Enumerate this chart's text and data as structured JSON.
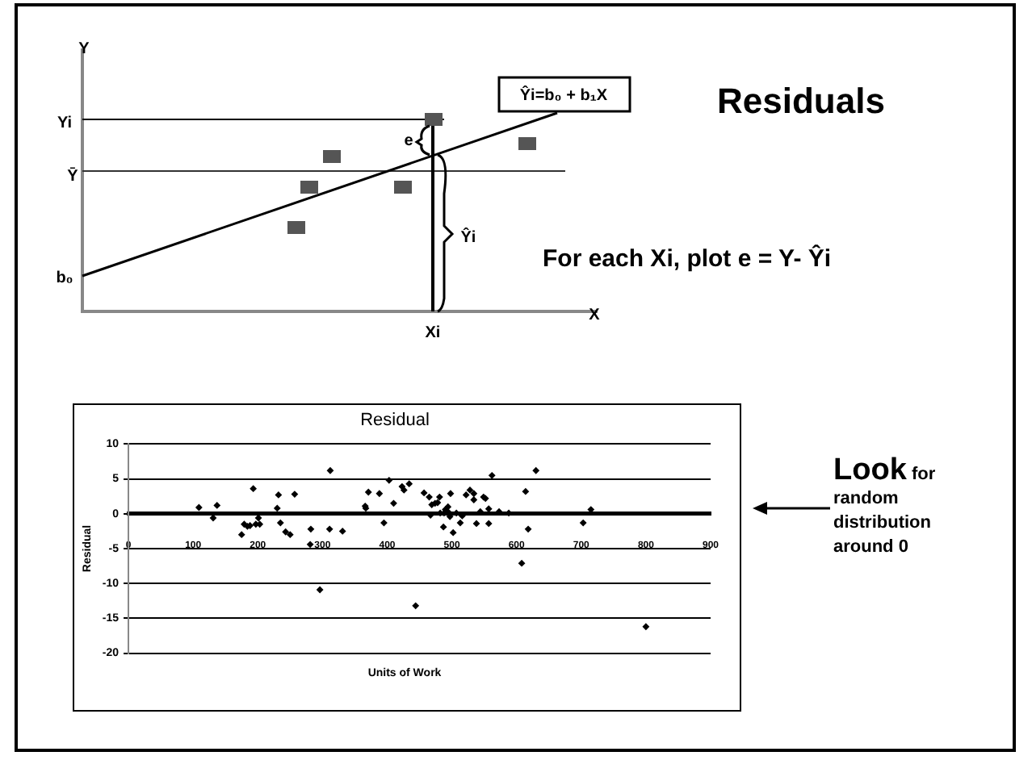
{
  "chart_data": {
    "type": "scatter",
    "title": "Residual",
    "xlabel": "Units of Work",
    "ylabel": "Residual",
    "x": [
      109,
      131,
      137,
      175,
      179,
      184,
      188,
      193,
      197,
      201,
      203,
      230,
      232,
      235,
      243,
      250,
      257,
      282,
      281,
      296,
      311,
      312,
      331,
      366,
      367,
      371,
      388,
      395,
      403,
      410,
      423,
      426,
      434,
      444,
      457,
      465,
      467,
      469,
      474,
      478,
      481,
      482,
      488,
      487,
      490,
      494,
      495,
      497,
      498,
      502,
      507,
      513,
      516,
      522,
      528,
      534,
      534,
      538,
      544,
      549,
      552,
      557,
      557,
      562,
      573,
      588,
      608,
      614,
      618,
      630,
      703,
      715,
      800
    ],
    "values": [
      0.9,
      -0.6,
      1.2,
      -3.0,
      -1.5,
      -1.8,
      -1.7,
      3.6,
      -1.5,
      -0.6,
      -1.5,
      0.8,
      2.7,
      -1.3,
      -2.6,
      -3.0,
      2.8,
      -2.2,
      -4.4,
      -10.9,
      -2.2,
      6.2,
      -2.5,
      1.1,
      0.8,
      3.1,
      2.9,
      -1.3,
      4.8,
      1.5,
      3.9,
      3.4,
      4.3,
      -13.2,
      3.0,
      2.4,
      -0.2,
      1.3,
      1.5,
      1.6,
      2.4,
      0.1,
      0.1,
      -1.9,
      0.6,
      1.0,
      0.2,
      -0.4,
      2.9,
      -2.7,
      0.1,
      -1.3,
      -0.3,
      2.7,
      3.4,
      2.9,
      2.0,
      -1.4,
      0.3,
      2.4,
      2.2,
      0.7,
      -1.4,
      5.5,
      0.3,
      0.1,
      -7.1,
      3.2,
      -2.2,
      6.2,
      -1.3,
      0.6,
      -16.2
    ],
    "color": "#000000",
    "marker": "diamond",
    "grid": "y",
    "xlim": [
      0,
      900
    ],
    "xticks": [
      0,
      100,
      200,
      300,
      400,
      500,
      600,
      700,
      800,
      900
    ],
    "ylim": [
      -20,
      10
    ],
    "yticks": [
      -20,
      -15,
      -10,
      -5,
      0,
      5,
      10
    ],
    "annotations": [
      "Residuals",
      "For each Xi, plot e = Y- Ŷi",
      "Look for random distribution around 0",
      "Y",
      "Yi",
      "Ȳ",
      "b₀",
      "X",
      "Xi",
      "e",
      "Ŷi",
      "Ŷi=b₀ + b₁X"
    ]
  }
}
